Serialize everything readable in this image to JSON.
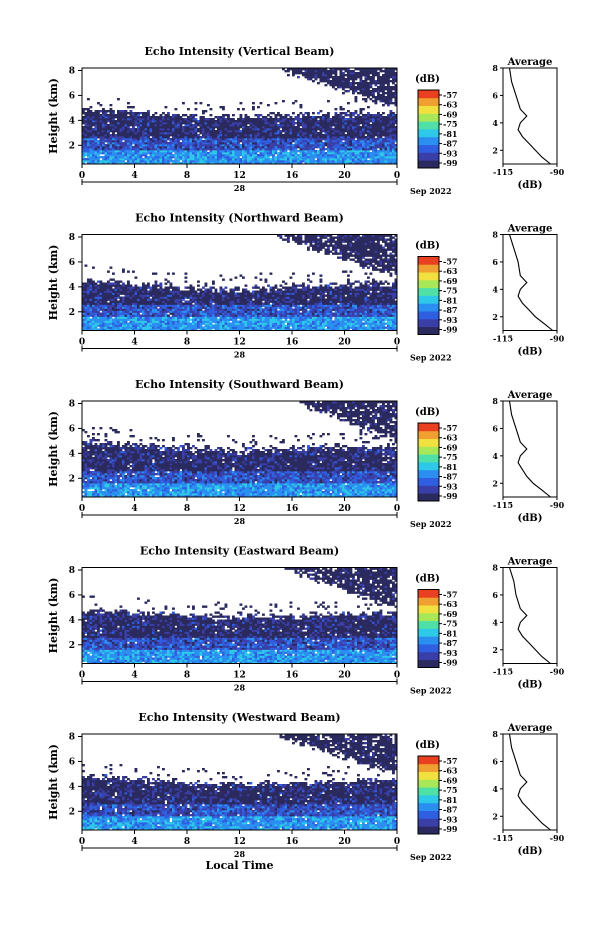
{
  "figure": {
    "x_tick_labels": [
      "0",
      "4",
      "8",
      "12",
      "16",
      "20",
      "0"
    ],
    "day_label": "28",
    "date_label": "Sep 2022",
    "x_axis_label": "Local Time",
    "y_label": "Height (km)",
    "y_tick_labels": [
      "2",
      "4",
      "6",
      "8"
    ],
    "colorbar_unit": "(dB)",
    "colorbar_tick_labels": [
      "-57",
      "-63",
      "-69",
      "-75",
      "-81",
      "-87",
      "-93",
      "-99"
    ],
    "average_title": "Average",
    "average_x_tick_labels": [
      "-115",
      "-90"
    ],
    "average_x_label": "(dB)"
  },
  "colors": {
    "colormap": [
      "#2a2a5e",
      "#3a3fa8",
      "#2f5fe0",
      "#2a8ff0",
      "#2ec8e8",
      "#4fe0a8",
      "#a8e858",
      "#f0e040",
      "#f0a030",
      "#e84020"
    ],
    "bad_data": "#ffffff"
  },
  "chart_data": [
    {
      "type": "heatmap",
      "title": "Echo Intensity (Vertical Beam)",
      "xlabel": "",
      "ylabel": "Height (km)",
      "xlim": [
        0,
        24
      ],
      "ylim": [
        0.5,
        8.2
      ],
      "clim": [
        -99,
        -57
      ],
      "colorbar_label": "(dB)",
      "cloud_top_km": [
        [
          0,
          4.9
        ],
        [
          4,
          4.6
        ],
        [
          8,
          4.3
        ],
        [
          12,
          4.2
        ],
        [
          16,
          4.4
        ],
        [
          20,
          4.5
        ],
        [
          24,
          4.6
        ]
      ],
      "upper_echo": [
        {
          "x0": 15.2,
          "x1": 24,
          "y_base_at_x0": 8.0,
          "y_base_at_x1": 5.0
        }
      ],
      "average_profile": {
        "x_dB": [
          -93,
          -97,
          -100,
          -103,
          -106,
          -108,
          -107,
          -104,
          -107,
          -109,
          -111,
          -112
        ],
        "height_km": [
          1.0,
          1.5,
          2.0,
          2.5,
          3.0,
          3.5,
          4.0,
          4.5,
          5.0,
          6.0,
          7.0,
          8.0
        ],
        "xlim": [
          -115,
          -90
        ],
        "ylim": [
          1,
          8
        ]
      }
    },
    {
      "type": "heatmap",
      "title": "Echo Intensity (Northward Beam)",
      "xlabel": "",
      "ylabel": "Height (km)",
      "xlim": [
        0,
        24
      ],
      "ylim": [
        0.5,
        8.2
      ],
      "clim": [
        -99,
        -57
      ],
      "colorbar_label": "(dB)",
      "cloud_top_km": [
        [
          0,
          4.6
        ],
        [
          4,
          4.2
        ],
        [
          8,
          3.9
        ],
        [
          12,
          3.8
        ],
        [
          16,
          4.0
        ],
        [
          20,
          4.2
        ],
        [
          24,
          4.3
        ]
      ],
      "upper_echo": [
        {
          "x0": 14.8,
          "x1": 24,
          "y_base_at_x0": 8.0,
          "y_base_at_x1": 4.8
        }
      ],
      "average_profile": {
        "x_dB": [
          -92,
          -96,
          -100,
          -103,
          -106,
          -108,
          -107,
          -104,
          -107,
          -108,
          -110,
          -112
        ],
        "height_km": [
          1.0,
          1.5,
          2.0,
          2.5,
          3.0,
          3.5,
          4.0,
          4.5,
          5.0,
          6.0,
          7.0,
          8.0
        ],
        "xlim": [
          -115,
          -90
        ],
        "ylim": [
          1,
          8
        ]
      }
    },
    {
      "type": "heatmap",
      "title": "Echo Intensity (Southward Beam)",
      "xlabel": "",
      "ylabel": "Height (km)",
      "xlim": [
        0,
        24
      ],
      "ylim": [
        0.5,
        8.2
      ],
      "clim": [
        -99,
        -57
      ],
      "colorbar_label": "(dB)",
      "cloud_top_km": [
        [
          0,
          5.0
        ],
        [
          4,
          4.7
        ],
        [
          8,
          4.4
        ],
        [
          12,
          4.2
        ],
        [
          16,
          4.4
        ],
        [
          20,
          4.5
        ],
        [
          24,
          4.6
        ]
      ],
      "upper_echo": [
        {
          "x0": 16.5,
          "x1": 24,
          "y_base_at_x0": 8.0,
          "y_base_at_x1": 5.0
        }
      ],
      "average_profile": {
        "x_dB": [
          -93,
          -97,
          -101,
          -104,
          -106,
          -108,
          -107,
          -104,
          -107,
          -109,
          -111,
          -112
        ],
        "height_km": [
          1.0,
          1.5,
          2.0,
          2.5,
          3.0,
          3.5,
          4.0,
          4.5,
          5.0,
          6.0,
          7.0,
          8.0
        ],
        "xlim": [
          -115,
          -90
        ],
        "ylim": [
          1,
          8
        ]
      }
    },
    {
      "type": "heatmap",
      "title": "Echo Intensity (Eastward Beam)",
      "xlabel": "",
      "ylabel": "Height (km)",
      "xlim": [
        0,
        24
      ],
      "ylim": [
        0.5,
        8.2
      ],
      "clim": [
        -99,
        -57
      ],
      "colorbar_label": "(dB)",
      "cloud_top_km": [
        [
          0,
          4.8
        ],
        [
          4,
          4.6
        ],
        [
          8,
          4.3
        ],
        [
          12,
          4.2
        ],
        [
          16,
          4.3
        ],
        [
          20,
          4.5
        ],
        [
          24,
          4.6
        ]
      ],
      "upper_echo": [
        {
          "x0": 15.5,
          "x1": 24,
          "y_base_at_x0": 8.0,
          "y_base_at_x1": 5.0
        }
      ],
      "average_profile": {
        "x_dB": [
          -93,
          -97,
          -100,
          -103,
          -106,
          -108,
          -107,
          -104,
          -107,
          -109,
          -110,
          -112
        ],
        "height_km": [
          1.0,
          1.5,
          2.0,
          2.5,
          3.0,
          3.5,
          4.0,
          4.5,
          5.0,
          6.0,
          7.0,
          8.0
        ],
        "xlim": [
          -115,
          -90
        ],
        "ylim": [
          1,
          8
        ]
      }
    },
    {
      "type": "heatmap",
      "title": "Echo Intensity (Westward Beam)",
      "xlabel": "Local Time",
      "ylabel": "Height (km)",
      "xlim": [
        0,
        24
      ],
      "ylim": [
        0.5,
        8.2
      ],
      "clim": [
        -99,
        -57
      ],
      "colorbar_label": "(dB)",
      "cloud_top_km": [
        [
          0,
          4.8
        ],
        [
          4,
          4.6
        ],
        [
          8,
          4.3
        ],
        [
          12,
          4.2
        ],
        [
          16,
          4.3
        ],
        [
          20,
          4.4
        ],
        [
          24,
          4.6
        ]
      ],
      "upper_echo": [
        {
          "x0": 15.0,
          "x1": 24,
          "y_base_at_x0": 8.0,
          "y_base_at_x1": 5.0
        }
      ],
      "average_profile": {
        "x_dB": [
          -93,
          -97,
          -100,
          -103,
          -106,
          -108,
          -107,
          -104,
          -107,
          -109,
          -111,
          -112
        ],
        "height_km": [
          1.0,
          1.5,
          2.0,
          2.5,
          3.0,
          3.5,
          4.0,
          4.5,
          5.0,
          6.0,
          7.0,
          8.0
        ],
        "xlim": [
          -115,
          -90
        ],
        "ylim": [
          1,
          8
        ]
      }
    }
  ]
}
